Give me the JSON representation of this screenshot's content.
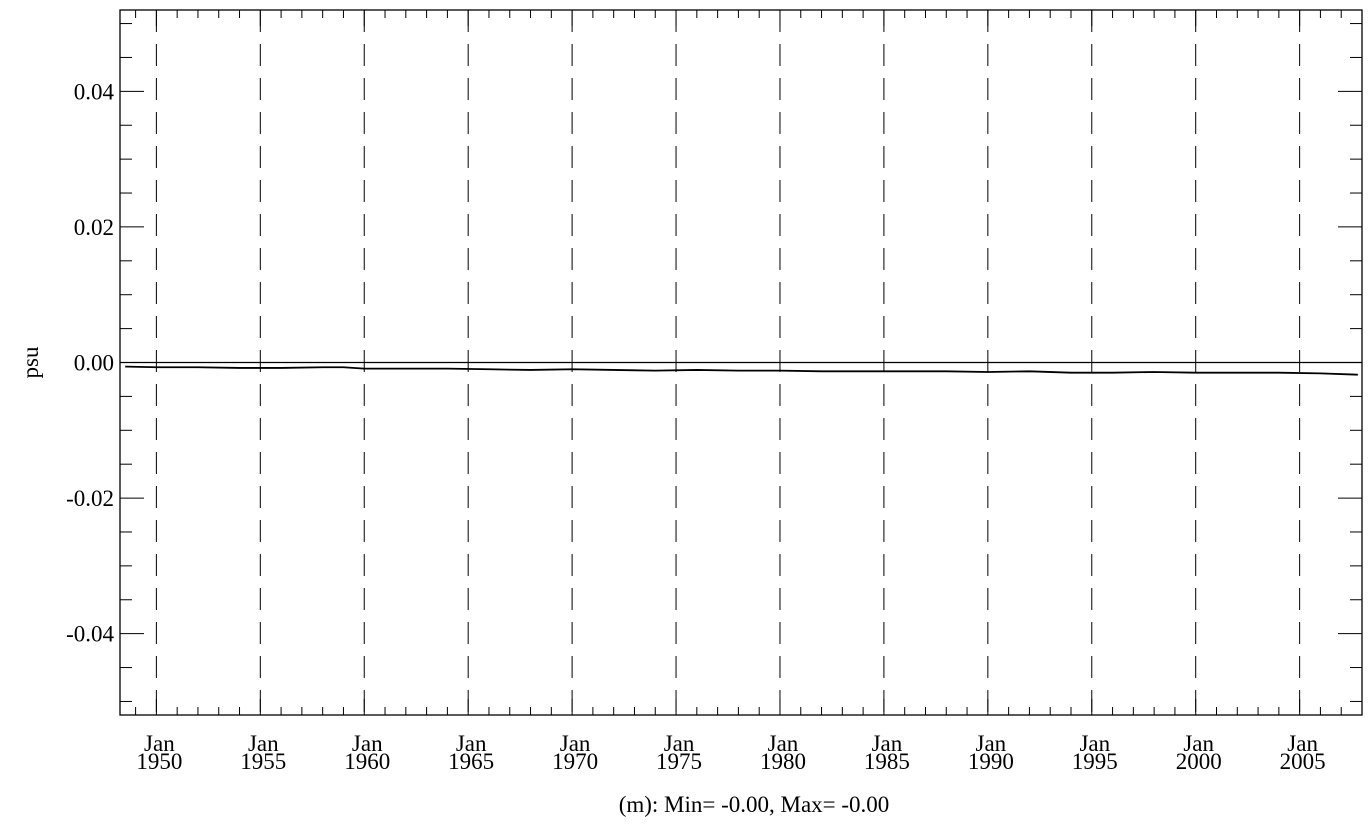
{
  "chart_data": {
    "type": "line",
    "title": "",
    "xlabel": "(m): Min= -0.00, Max= -0.00",
    "ylabel": "psu",
    "x_range": [
      1948.25,
      2008.0
    ],
    "ylim": [
      -0.052,
      0.052
    ],
    "y_ticks": [
      -0.04,
      -0.02,
      0.0,
      0.02,
      0.04
    ],
    "y_tick_labels": [
      "-0.04",
      "-0.02",
      "0.00",
      "0.02",
      "0.04"
    ],
    "y_minor_step": 0.005,
    "x_major_ticks": [
      1950,
      1955,
      1960,
      1965,
      1970,
      1975,
      1980,
      1985,
      1990,
      1995,
      2000,
      2005
    ],
    "x_tick_labels": [
      {
        "month": "Jan",
        "year": "1950"
      },
      {
        "month": "Jan",
        "year": "1955"
      },
      {
        "month": "Jan",
        "year": "1960"
      },
      {
        "month": "Jan",
        "year": "1965"
      },
      {
        "month": "Jan",
        "year": "1970"
      },
      {
        "month": "Jan",
        "year": "1975"
      },
      {
        "month": "Jan",
        "year": "1980"
      },
      {
        "month": "Jan",
        "year": "1985"
      },
      {
        "month": "Jan",
        "year": "1990"
      },
      {
        "month": "Jan",
        "year": "1995"
      },
      {
        "month": "Jan",
        "year": "2000"
      },
      {
        "month": "Jan",
        "year": "2005"
      }
    ],
    "x_minor_step": 1,
    "vertical_dashed_gridlines": true,
    "zero_line": true,
    "series": [
      {
        "x": [
          1948.5,
          1950,
          1952,
          1954,
          1956,
          1958,
          1959,
          1960,
          1962,
          1964,
          1966,
          1968,
          1970,
          1972,
          1974,
          1976,
          1978,
          1980,
          1982,
          1984,
          1986,
          1988,
          1990,
          1992,
          1994,
          1996,
          1998,
          2000,
          2002,
          2004,
          2006,
          2007.8
        ],
        "y": [
          -0.0006,
          -0.0007,
          -0.0007,
          -0.0008,
          -0.0008,
          -0.0007,
          -0.0007,
          -0.0009,
          -0.0009,
          -0.0009,
          -0.001,
          -0.0011,
          -0.001,
          -0.0011,
          -0.0012,
          -0.0011,
          -0.0012,
          -0.0012,
          -0.0013,
          -0.0013,
          -0.0013,
          -0.0013,
          -0.0014,
          -0.0013,
          -0.0015,
          -0.0015,
          -0.0014,
          -0.0015,
          -0.0015,
          -0.0015,
          -0.0016,
          -0.0018
        ]
      }
    ]
  }
}
